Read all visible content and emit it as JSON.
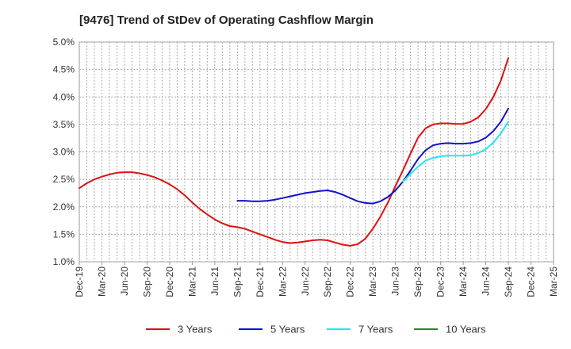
{
  "chart_data": {
    "type": "line",
    "title": "[9476]  Trend of StDev of Operating Cashflow Margin",
    "xlabel": "",
    "ylabel": "",
    "x_ticks": [
      "Dec-19",
      "Mar-20",
      "Jun-20",
      "Sep-20",
      "Dec-20",
      "Mar-21",
      "Jun-21",
      "Sep-21",
      "Dec-21",
      "Mar-22",
      "Jun-22",
      "Sep-22",
      "Dec-22",
      "Mar-23",
      "Jun-23",
      "Sep-23",
      "Dec-23",
      "Mar-24",
      "Jun-24",
      "Sep-24",
      "Dec-24",
      "Mar-25"
    ],
    "y_ticks": [
      "1.0%",
      "1.5%",
      "2.0%",
      "2.5%",
      "3.0%",
      "3.5%",
      "4.0%",
      "4.5%",
      "5.0%"
    ],
    "ylim": [
      1.0,
      5.0
    ],
    "y_unit": "%",
    "grid": true,
    "legend_position": "bottom",
    "series": [
      {
        "name": "3 Years",
        "color": "#dd1111",
        "x": [
          "Dec-19",
          "Jan-20",
          "Feb-20",
          "Mar-20",
          "Apr-20",
          "May-20",
          "Jun-20",
          "Jul-20",
          "Aug-20",
          "Sep-20",
          "Oct-20",
          "Nov-20",
          "Dec-20",
          "Jan-21",
          "Feb-21",
          "Mar-21",
          "Apr-21",
          "May-21",
          "Jun-21",
          "Jul-21",
          "Aug-21",
          "Sep-21",
          "Oct-21",
          "Nov-21",
          "Dec-21",
          "Jan-22",
          "Feb-22",
          "Mar-22",
          "Apr-22",
          "May-22",
          "Jun-22",
          "Jul-22",
          "Aug-22",
          "Sep-22",
          "Oct-22",
          "Nov-22",
          "Dec-22",
          "Jan-23",
          "Feb-23",
          "Mar-23",
          "Apr-23",
          "May-23",
          "Jun-23",
          "Jul-23",
          "Aug-23",
          "Sep-23",
          "Oct-23",
          "Nov-23",
          "Dec-23",
          "Jan-24",
          "Feb-24",
          "Mar-24",
          "Apr-24",
          "May-24",
          "Jun-24",
          "Jul-24",
          "Aug-24",
          "Sep-24"
        ],
        "values": [
          2.34,
          2.43,
          2.5,
          2.55,
          2.59,
          2.62,
          2.63,
          2.63,
          2.61,
          2.58,
          2.54,
          2.48,
          2.41,
          2.32,
          2.21,
          2.08,
          1.96,
          1.86,
          1.77,
          1.7,
          1.65,
          1.63,
          1.6,
          1.55,
          1.5,
          1.45,
          1.4,
          1.36,
          1.34,
          1.35,
          1.37,
          1.39,
          1.4,
          1.39,
          1.35,
          1.31,
          1.29,
          1.32,
          1.42,
          1.6,
          1.82,
          2.08,
          2.38,
          2.67,
          2.97,
          3.26,
          3.43,
          3.5,
          3.52,
          3.52,
          3.51,
          3.51,
          3.55,
          3.63,
          3.78,
          4.0,
          4.3,
          4.71
        ]
      },
      {
        "name": "5 Years",
        "color": "#1111cc",
        "x": [
          "Sep-21",
          "Oct-21",
          "Nov-21",
          "Dec-21",
          "Jan-22",
          "Feb-22",
          "Mar-22",
          "Apr-22",
          "May-22",
          "Jun-22",
          "Jul-22",
          "Aug-22",
          "Sep-22",
          "Oct-22",
          "Nov-22",
          "Dec-22",
          "Jan-23",
          "Feb-23",
          "Mar-23",
          "Apr-23",
          "May-23",
          "Jun-23",
          "Jul-23",
          "Aug-23",
          "Sep-23",
          "Oct-23",
          "Nov-23",
          "Dec-23",
          "Jan-24",
          "Feb-24",
          "Mar-24",
          "Apr-24",
          "May-24",
          "Jun-24",
          "Jul-24",
          "Aug-24",
          "Sep-24"
        ],
        "values": [
          2.11,
          2.11,
          2.1,
          2.1,
          2.11,
          2.13,
          2.16,
          2.19,
          2.22,
          2.25,
          2.27,
          2.29,
          2.3,
          2.27,
          2.22,
          2.16,
          2.1,
          2.07,
          2.06,
          2.1,
          2.18,
          2.3,
          2.46,
          2.66,
          2.87,
          3.03,
          3.12,
          3.15,
          3.16,
          3.15,
          3.15,
          3.16,
          3.19,
          3.26,
          3.38,
          3.55,
          3.79
        ]
      },
      {
        "name": "7 Years",
        "color": "#22e5f0",
        "x": [
          "Jul-23",
          "Aug-23",
          "Sep-23",
          "Oct-23",
          "Nov-23",
          "Dec-23",
          "Jan-24",
          "Feb-24",
          "Mar-24",
          "Apr-24",
          "May-24",
          "Jun-24",
          "Jul-24",
          "Aug-24",
          "Sep-24"
        ],
        "values": [
          2.46,
          2.6,
          2.73,
          2.84,
          2.89,
          2.92,
          2.93,
          2.93,
          2.93,
          2.94,
          2.98,
          3.05,
          3.17,
          3.34,
          3.55
        ]
      },
      {
        "name": "10 Years",
        "color": "#228b22",
        "x": [],
        "values": []
      }
    ]
  }
}
